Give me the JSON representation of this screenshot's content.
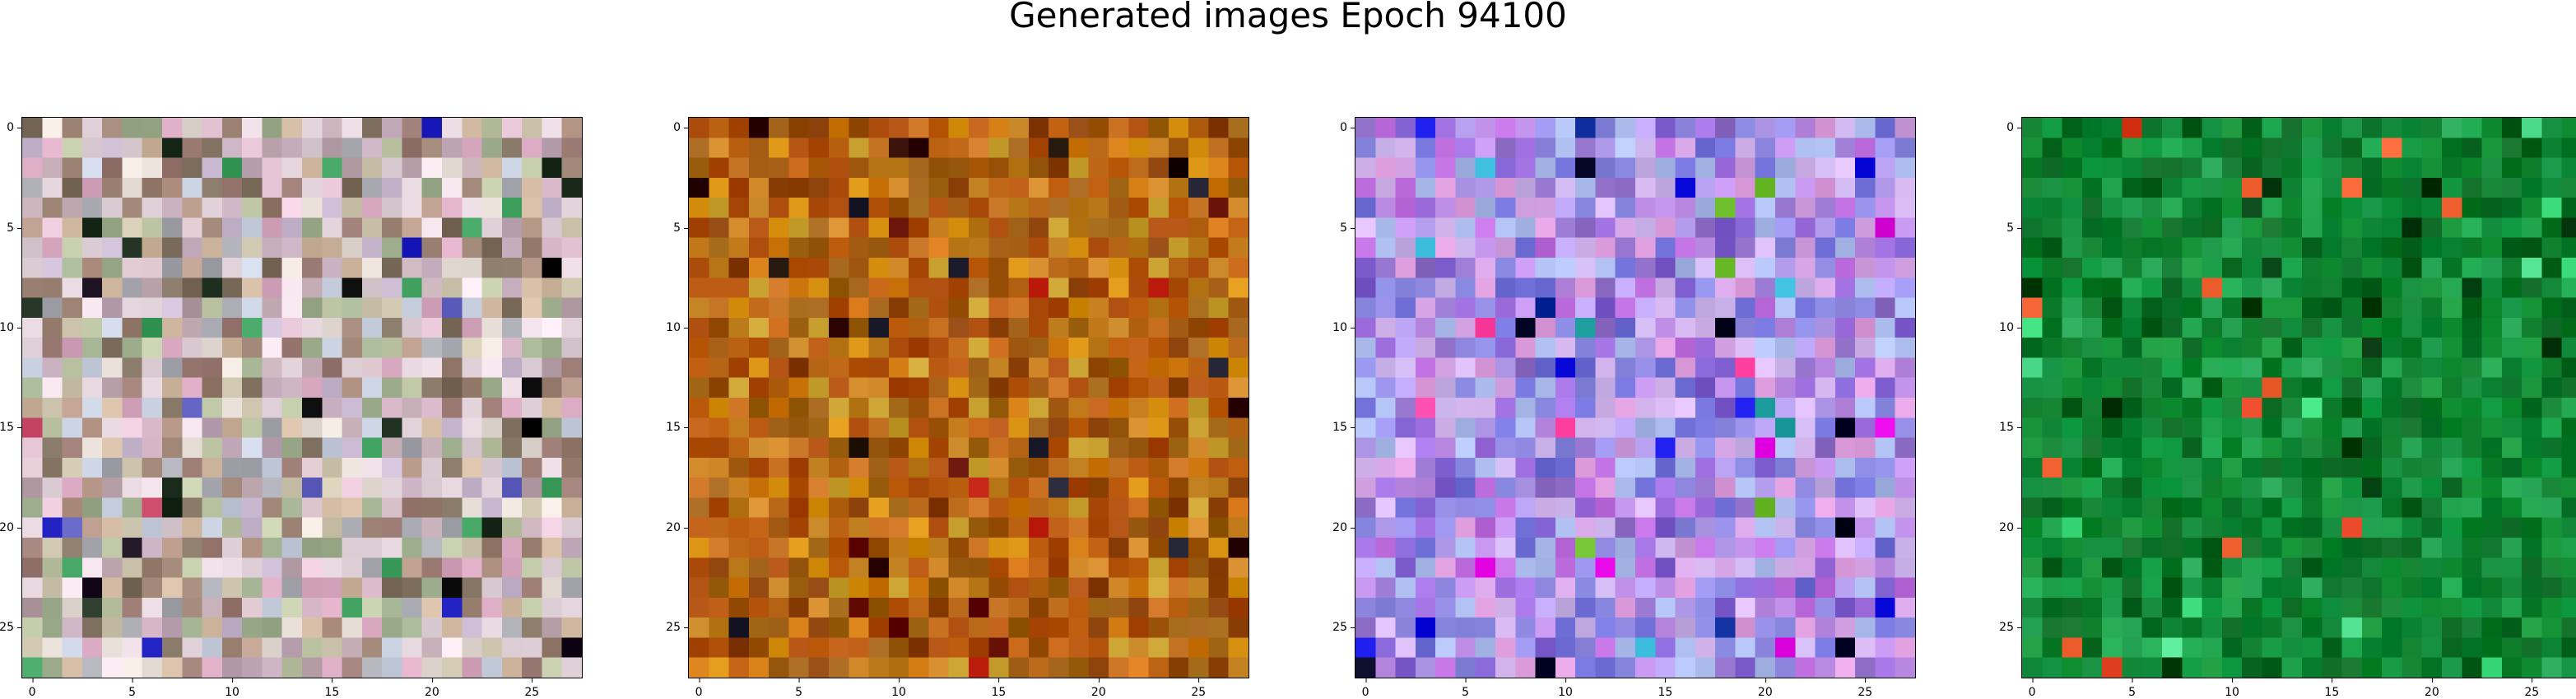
{
  "title": "Generated images Epoch 94100",
  "axes": {
    "ticks": [
      "0",
      "5",
      "10",
      "15",
      "20",
      "25"
    ],
    "tick_values": [
      0,
      5,
      10,
      15,
      20,
      25
    ],
    "grid_size": 28
  },
  "images": [
    {
      "name": "generated-image-1",
      "palette": "pastel-mixed",
      "base": "#c8b0b8"
    },
    {
      "name": "generated-image-2",
      "palette": "orange-brown",
      "base": "#c06a0c"
    },
    {
      "name": "generated-image-3",
      "palette": "blue-purple-pink",
      "base": "#a070e0"
    },
    {
      "name": "generated-image-4",
      "palette": "green",
      "base": "#108a30"
    }
  ]
}
